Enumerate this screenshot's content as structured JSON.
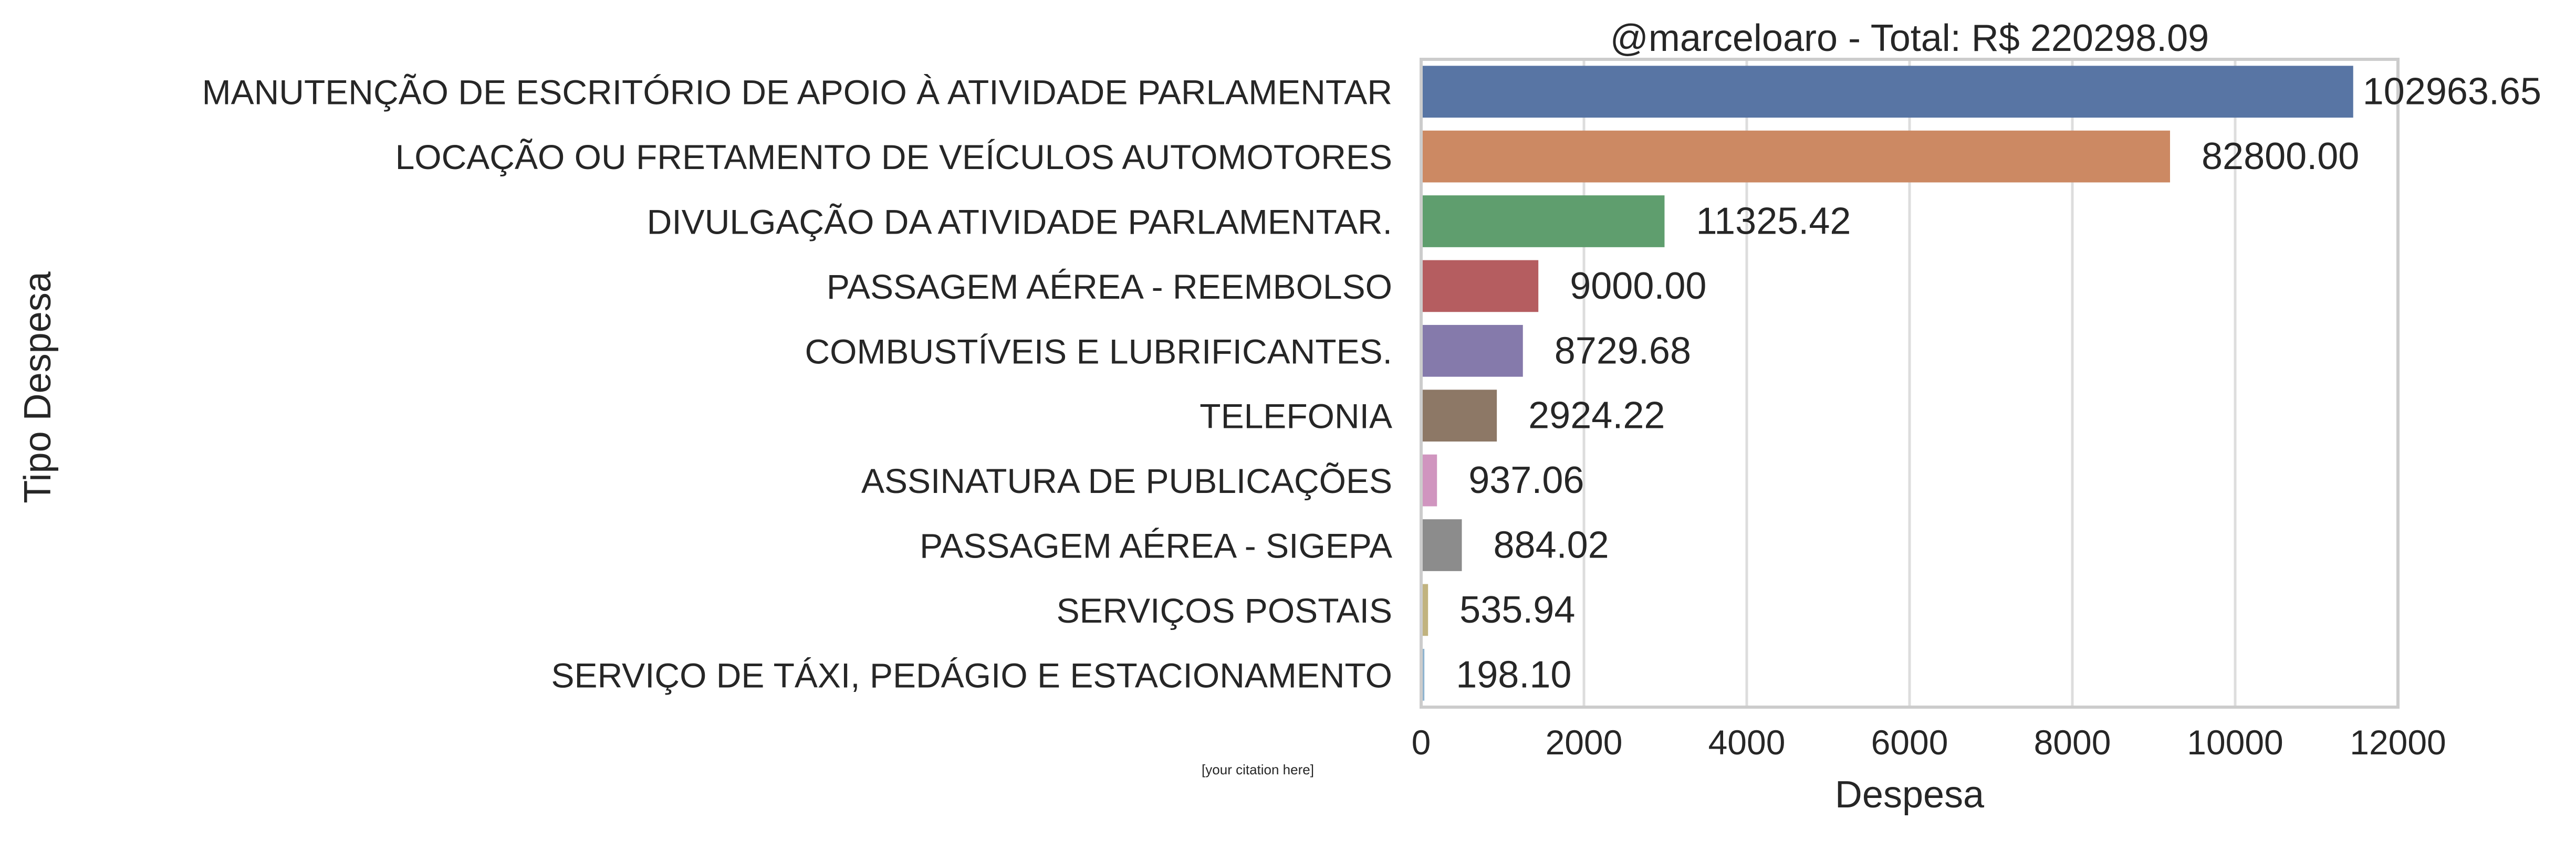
{
  "chart_data": {
    "type": "bar",
    "orientation": "horizontal",
    "title": "@marceloaro - Total: R$ 220298.09",
    "xlabel": "Despesa",
    "ylabel": "Tipo Despesa",
    "xlim": [
      0,
      12000
    ],
    "xticks": [
      "0",
      "2000",
      "4000",
      "6000",
      "8000",
      "10000",
      "12000"
    ],
    "grid": "vertical",
    "categories": [
      "MANUTENÇÃO DE ESCRITÓRIO DE APOIO À ATIVIDADE PARLAMENTAR",
      "LOCAÇÃO OU FRETAMENTO DE VEÍCULOS AUTOMOTORES",
      "DIVULGAÇÃO DA ATIVIDADE PARLAMENTAR.",
      "PASSAGEM AÉREA - REEMBOLSO",
      "COMBUSTÍVEIS E LUBRIFICANTES.",
      "TELEFONIA",
      "ASSINATURA DE PUBLICAÇÕES",
      "PASSAGEM AÉREA - SIGEPA",
      "SERVIÇOS POSTAIS",
      "SERVIÇO DE TÁXI, PEDÁGIO E ESTACIONAMENTO"
    ],
    "values": [
      11450,
      9200,
      2990,
      1440,
      1250,
      930,
      195,
      500,
      85,
      40
    ],
    "data_labels": [
      "102963.65",
      "82800.00",
      "11325.42",
      "9000.00",
      "8729.68",
      "2924.22",
      "937.06",
      "884.02",
      "535.94",
      "198.10"
    ],
    "colors": [
      "#5875a4",
      "#cc8963",
      "#5f9e6e",
      "#b55d60",
      "#857aab",
      "#8d7866",
      "#d095bf",
      "#8c8c8c",
      "#c1b37f",
      "#8fb4cf"
    ],
    "citation": "[your citation here]"
  }
}
